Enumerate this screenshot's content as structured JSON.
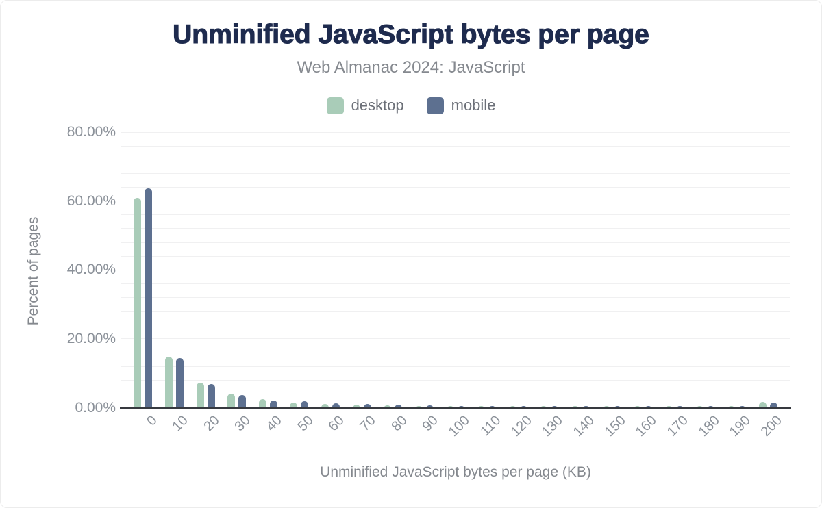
{
  "chart_data": {
    "type": "bar",
    "title": "Unminified JavaScript bytes per page",
    "subtitle": "Web Almanac 2024: JavaScript",
    "xlabel": "Unminified JavaScript bytes per page (KB)",
    "ylabel": "Percent of pages",
    "ylim": [
      0,
      80
    ],
    "grid": "minor gridlines every 4%, labeled major ticks every 20%",
    "legend_position": "top",
    "y_ticks": [
      {
        "value": 0,
        "label": "0.00%"
      },
      {
        "value": 20,
        "label": "20.00%"
      },
      {
        "value": 40,
        "label": "40.00%"
      },
      {
        "value": 60,
        "label": "60.00%"
      },
      {
        "value": 80,
        "label": "80.00%"
      }
    ],
    "categories": [
      "0",
      "10",
      "20",
      "30",
      "40",
      "50",
      "60",
      "70",
      "80",
      "90",
      "100",
      "110",
      "120",
      "130",
      "140",
      "150",
      "160",
      "170",
      "180",
      "190",
      "200"
    ],
    "series": [
      {
        "name": "desktop",
        "color": "#a9ccb8",
        "values": [
          60.9,
          14.8,
          7.3,
          4.0,
          2.4,
          1.5,
          1.0,
          0.8,
          0.6,
          0.5,
          0.4,
          0.3,
          0.3,
          0.2,
          0.2,
          0.2,
          0.15,
          0.1,
          0.1,
          0.1,
          1.7
        ]
      },
      {
        "name": "mobile",
        "color": "#5d7090",
        "values": [
          63.8,
          14.4,
          6.8,
          3.6,
          2.1,
          1.8,
          1.3,
          1.0,
          0.8,
          0.7,
          0.5,
          0.4,
          0.3,
          0.25,
          0.25,
          0.2,
          0.2,
          0.15,
          0.15,
          0.15,
          1.4
        ]
      }
    ]
  }
}
